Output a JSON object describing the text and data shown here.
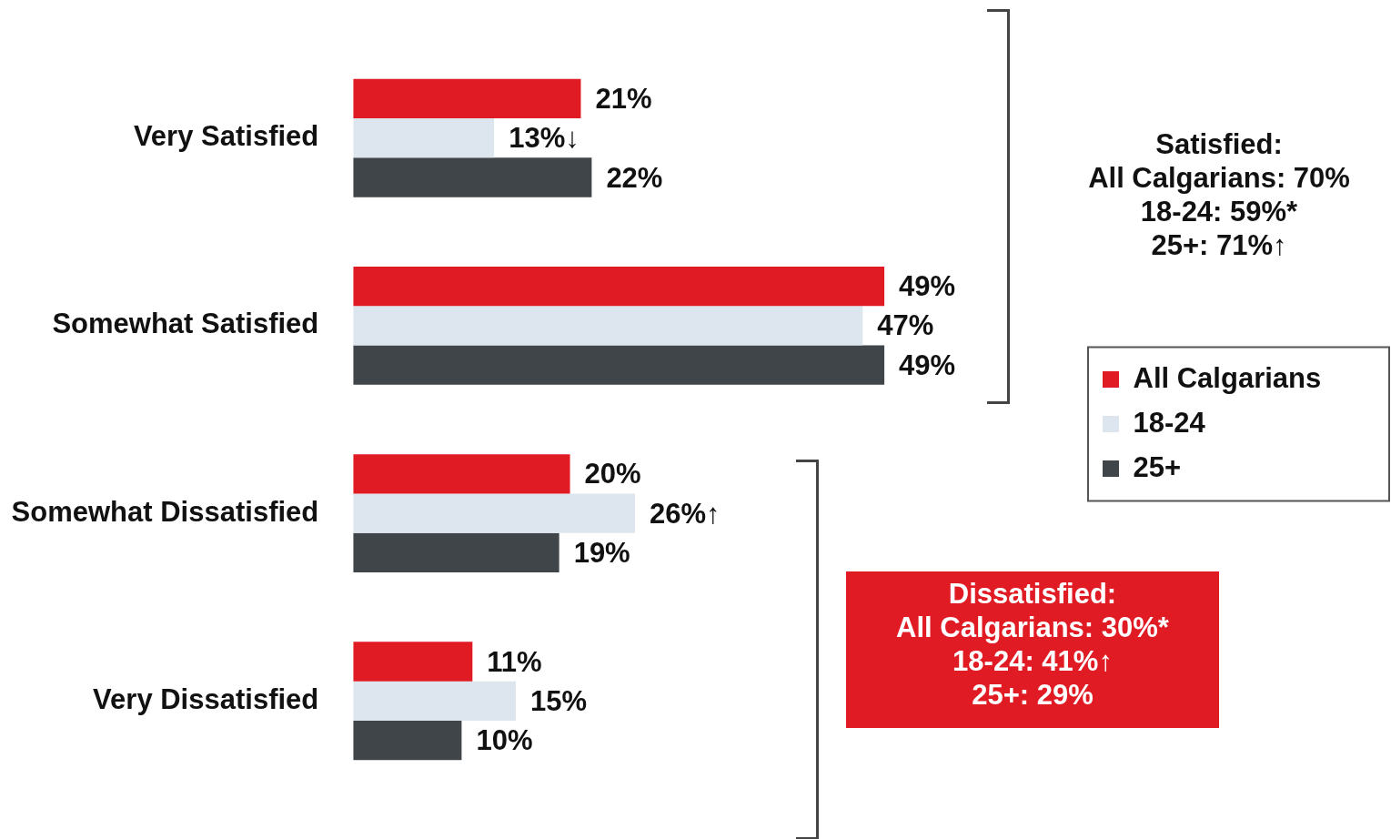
{
  "chart_data": {
    "type": "bar",
    "orientation": "horizontal",
    "categories": [
      "Very Satisfied",
      "Somewhat Satisfied",
      "Somewhat Dissatisfied",
      "Very Dissatisfied"
    ],
    "series": [
      {
        "name": "All Calgarians",
        "color": "#e01b24",
        "values": [
          21,
          49,
          20,
          11
        ],
        "value_labels": [
          "21%",
          "49%",
          "20%",
          "11%"
        ]
      },
      {
        "name": "18-24",
        "color": "#dde6ee",
        "values": [
          13,
          47,
          26,
          15
        ],
        "value_labels": [
          "13%↓",
          "47%",
          "26%↑",
          "15%"
        ]
      },
      {
        "name": "25+",
        "color": "#3f4549",
        "values": [
          22,
          49,
          19,
          10
        ],
        "value_labels": [
          "22%",
          "49%",
          "19%",
          "10%"
        ]
      }
    ],
    "tick_labels": "y",
    "legend": "right",
    "annotations": [
      "Satisfied:\nAll Calgarians: 70%\n18-24: 59%*\n25+: 71%↑",
      "Dissatisfied:\nAll Calgarians: 30%*\n18-24: 41%↑\n25+: 29%"
    ]
  }
}
